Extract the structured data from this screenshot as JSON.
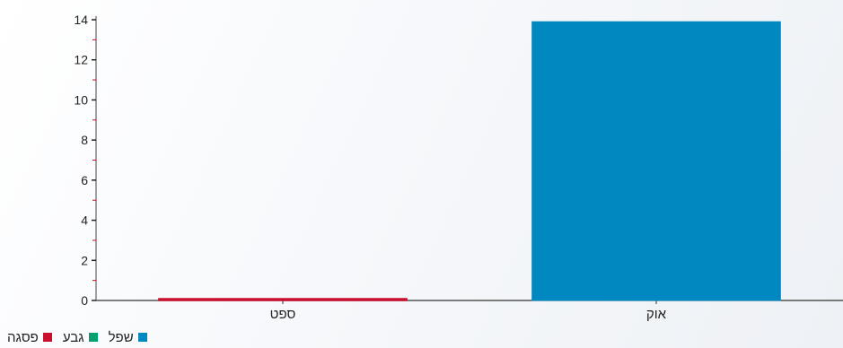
{
  "chart_data": {
    "type": "bar",
    "categories": [
      "ספט",
      "אוק"
    ],
    "series": [
      {
        "name": "פסגה",
        "color": "#c8102e",
        "values": [
          0.1,
          0
        ]
      },
      {
        "name": "גבע",
        "color": "#00a070",
        "values": [
          0,
          0
        ]
      },
      {
        "name": "שפל",
        "color": "#0288c1",
        "values": [
          0,
          13.9
        ]
      }
    ],
    "y_ticks": [
      "0",
      "2",
      "4",
      "6",
      "8",
      "10",
      "12",
      "14"
    ],
    "ylim": [
      0,
      14
    ],
    "grid": false,
    "legend_position": "bottom-left",
    "axis_minor_tick_color": "#d0021b"
  }
}
